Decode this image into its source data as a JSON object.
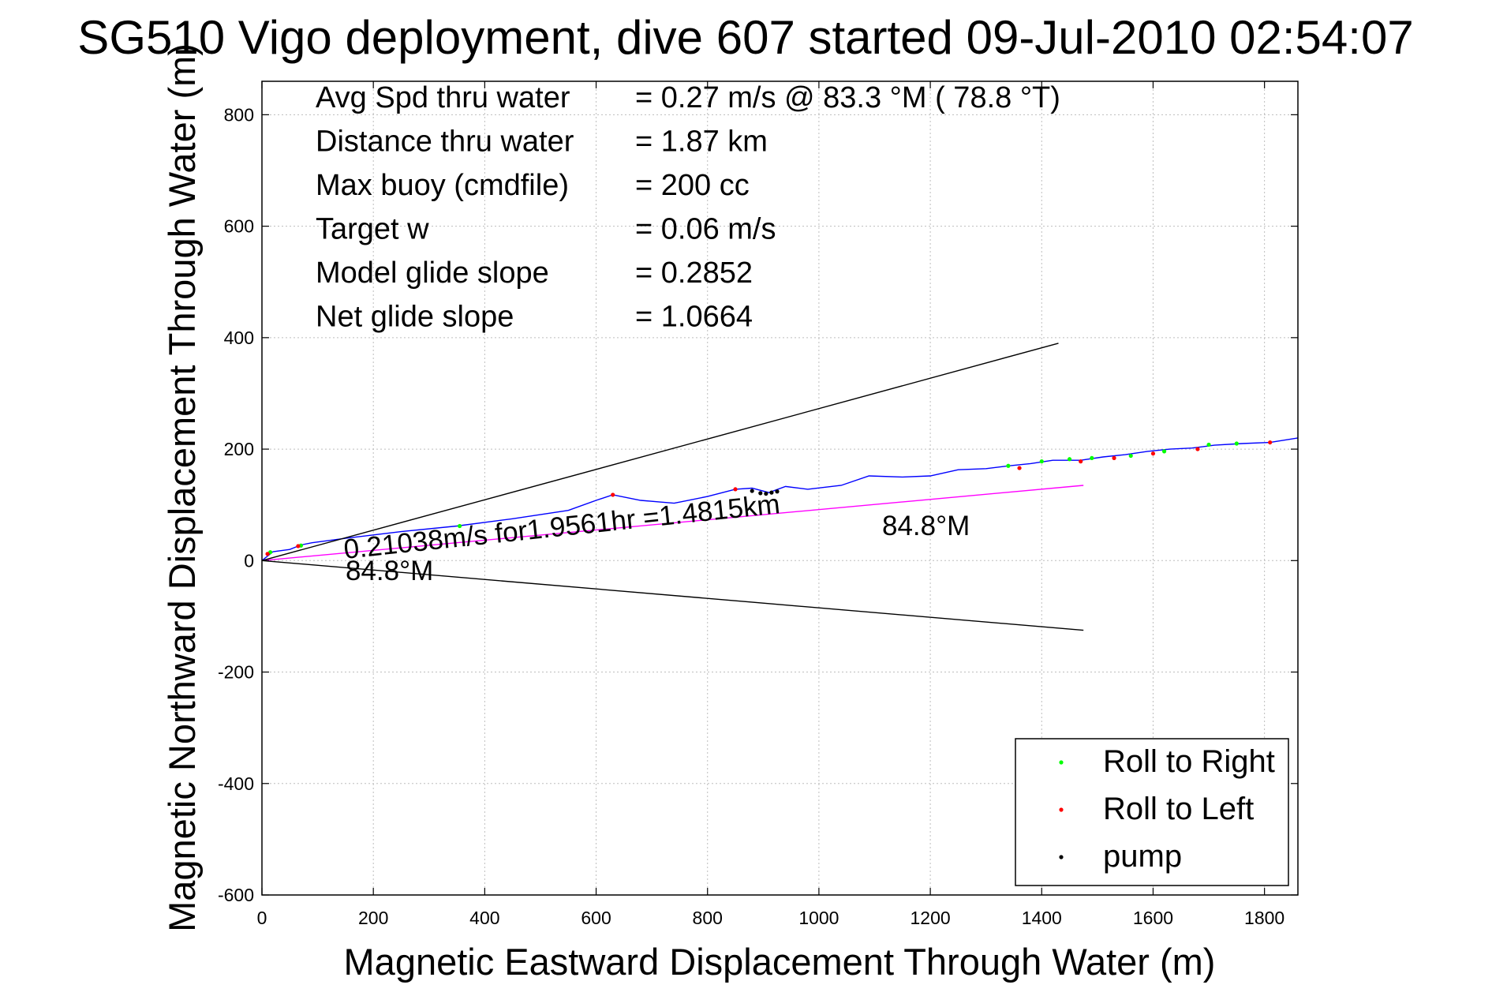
{
  "chart_data": {
    "type": "line",
    "title": "SG510 Vigo deployment, dive 607 started 09-Jul-2010 02:54:07",
    "xlabel": "Magnetic Eastward Displacement Through Water (m)",
    "ylabel": "Magnetic Northward Displacement Through Water (m)",
    "xlim": [
      0,
      1860
    ],
    "ylim": [
      -600,
      860
    ],
    "xticks": [
      0,
      200,
      400,
      600,
      800,
      1000,
      1200,
      1400,
      1600,
      1800
    ],
    "yticks": [
      -600,
      -400,
      -200,
      0,
      200,
      400,
      600,
      800
    ],
    "xtick_labels": [
      "0",
      "200",
      "400",
      "600",
      "800",
      "1000",
      "1200",
      "1400",
      "1600",
      "1800"
    ],
    "ytick_labels": [
      "-600",
      "-400",
      "-200",
      "0",
      "200",
      "400",
      "600",
      "800"
    ],
    "grid": true,
    "info_rows": [
      {
        "label": "Avg Spd thru water",
        "value": "=  0.27 m/s @  83.3 °M ( 78.8 °T)"
      },
      {
        "label": "Distance thru water",
        "value": "=  1.87 km"
      },
      {
        "label": "Max buoy (cmdfile)",
        "value": "= 200 cc"
      },
      {
        "label": "Target w",
        "value": "= 0.06 m/s"
      },
      {
        "label": "Model glide slope",
        "value": "= 0.2852"
      },
      {
        "label": "Net glide slope",
        "value": "= 1.0664"
      }
    ],
    "annotations": {
      "speed_label": "0.21038m/s for1.9561hr =1.4815km",
      "heading_left": "84.8°M",
      "heading_right": "84.8°M"
    },
    "series": [
      {
        "name": "track",
        "color": "#0000ff",
        "x": [
          0,
          20,
          50,
          70,
          90,
          150,
          250,
          350,
          450,
          550,
          600,
          630,
          680,
          740,
          800,
          850,
          880,
          910,
          940,
          980,
          1040,
          1090,
          1150,
          1200,
          1250,
          1300,
          1340,
          1380,
          1420,
          1470,
          1510,
          1550,
          1590,
          1630,
          1670,
          1710,
          1760,
          1810,
          1860
        ],
        "y": [
          0,
          16,
          20,
          28,
          32,
          40,
          52,
          62,
          75,
          90,
          108,
          118,
          108,
          103,
          115,
          128,
          130,
          122,
          133,
          128,
          135,
          152,
          150,
          152,
          163,
          165,
          170,
          174,
          180,
          180,
          186,
          190,
          196,
          200,
          202,
          207,
          210,
          212,
          220
        ]
      },
      {
        "name": "net course",
        "color": "#ff00ff",
        "x": [
          0,
          1475
        ],
        "y": [
          0,
          135
        ]
      },
      {
        "name": "upper bound",
        "color": "#000000",
        "x": [
          0,
          1430
        ],
        "y": [
          0,
          390
        ]
      },
      {
        "name": "lower bound",
        "color": "#000000",
        "x": [
          0,
          1475
        ],
        "y": [
          0,
          -125
        ]
      },
      {
        "name": "Roll to Right",
        "color": "#00ff00",
        "marker": "dot",
        "x": [
          15,
          70,
          355,
          1340,
          1400,
          1450,
          1490,
          1560,
          1620,
          1700,
          1750
        ],
        "y": [
          15,
          27,
          62,
          170,
          178,
          182,
          184,
          188,
          196,
          208,
          210
        ]
      },
      {
        "name": "Roll to Left",
        "color": "#ff0000",
        "marker": "dot",
        "x": [
          10,
          65,
          630,
          850,
          1360,
          1470,
          1530,
          1600,
          1680,
          1810
        ],
        "y": [
          12,
          26,
          118,
          128,
          166,
          178,
          184,
          192,
          200,
          212
        ]
      },
      {
        "name": "pump",
        "color": "#000000",
        "marker": "dot",
        "x": [
          880,
          895,
          905,
          915,
          925
        ],
        "y": [
          125,
          121,
          120,
          122,
          124
        ]
      }
    ],
    "legend": {
      "placement": "bottom-right",
      "entries": [
        {
          "label": "Roll to Right",
          "color": "#00ff00"
        },
        {
          "label": "Roll to Left",
          "color": "#ff0000"
        },
        {
          "label": "pump",
          "color": "#000000"
        }
      ]
    }
  }
}
